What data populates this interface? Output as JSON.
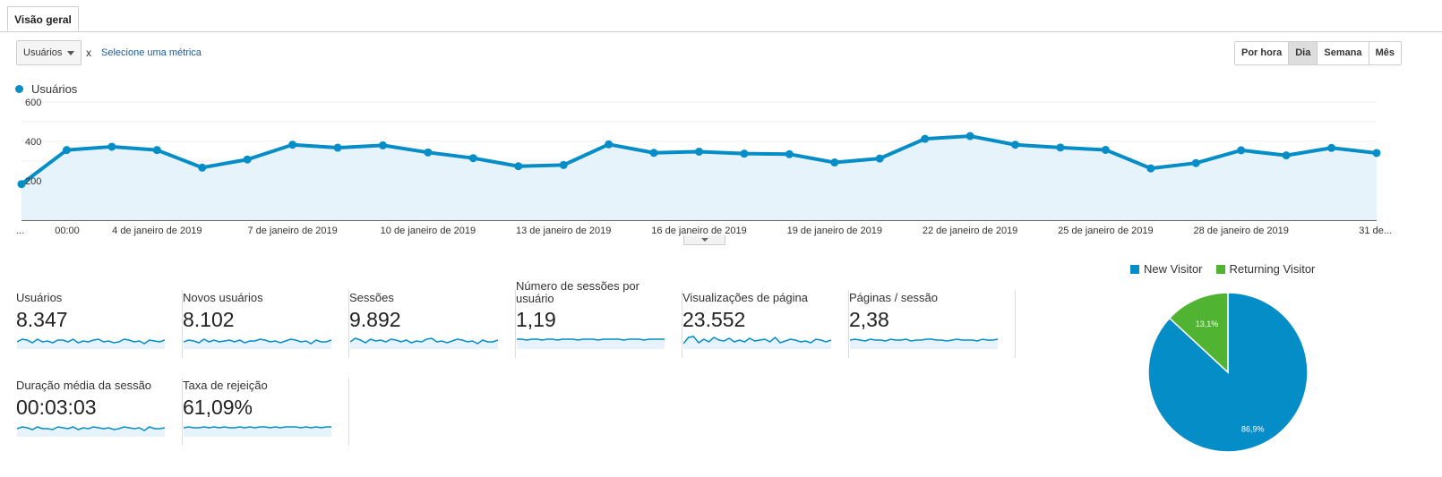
{
  "tab": {
    "label": "Visão geral"
  },
  "controls": {
    "metric_selected": "Usuários",
    "clear_label": "x",
    "add_metric_label": "Selecione uma métrica",
    "granularity": [
      "Por hora",
      "Dia",
      "Semana",
      "Mês"
    ],
    "granularity_active": "Dia"
  },
  "chart_data": {
    "type": "line",
    "series": [
      {
        "name": "Usuários",
        "color": "#058dc7",
        "values": [
          183,
          356,
          373,
          356,
          267,
          308,
          383,
          368,
          380,
          344,
          315,
          274,
          280,
          385,
          342,
          348,
          338,
          335,
          293,
          313,
          413,
          427,
          383,
          369,
          357,
          263,
          290,
          355,
          329,
          367,
          341
        ]
      }
    ],
    "y_ticks": [
      "600",
      "400",
      "200"
    ],
    "ylim": [
      0,
      600
    ],
    "x_tick_labels": [
      "...",
      "00:00",
      "4 de janeiro de 2019",
      "7 de janeiro de 2019",
      "10 de janeiro de 2019",
      "13 de janeiro de 2019",
      "16 de janeiro de 2019",
      "19 de janeiro de 2019",
      "22 de janeiro de 2019",
      "25 de janeiro de 2019",
      "28 de janeiro de 2019",
      "31 de..."
    ],
    "grid": true
  },
  "scorecards": [
    {
      "label": "Usuários",
      "value": "8.347"
    },
    {
      "label": "Novos usuários",
      "value": "8.102"
    },
    {
      "label": "Sessões",
      "value": "9.892"
    },
    {
      "label": "Número de sessões por usuário",
      "value": "1,19"
    },
    {
      "label": "Visualizações de página",
      "value": "23.552"
    },
    {
      "label": "Páginas / sessão",
      "value": "2,38"
    },
    {
      "label": "Duração média da sessão",
      "value": "00:03:03"
    },
    {
      "label": "Taxa de rejeição",
      "value": "61,09%"
    }
  ],
  "pie": {
    "type": "pie",
    "slices": [
      {
        "name": "New Visitor",
        "value": 86.9,
        "label": "86,9%",
        "color": "#058dc7"
      },
      {
        "name": "Returning Visitor",
        "value": 13.1,
        "label": "13,1%",
        "color": "#50b432"
      }
    ]
  }
}
